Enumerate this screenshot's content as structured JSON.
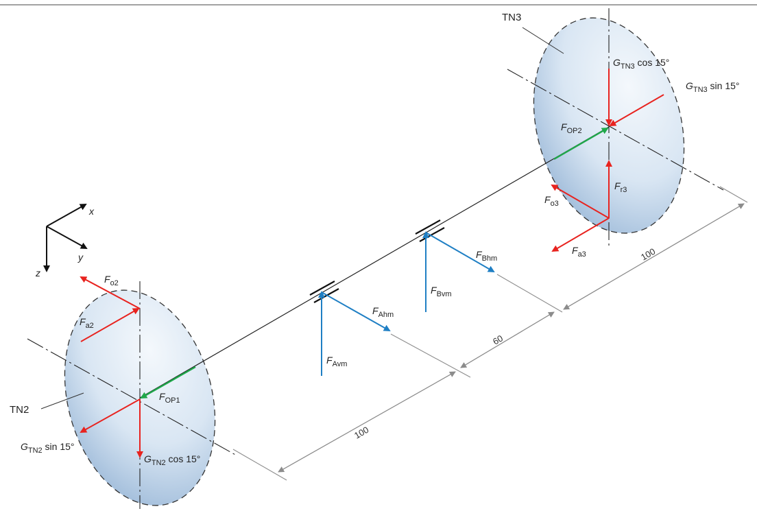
{
  "disks": {
    "left_label": "TN2",
    "right_label": "TN3"
  },
  "axes": {
    "x": "x",
    "y": "y",
    "z": "z"
  },
  "dimensions": {
    "d1": "100",
    "d2": "60",
    "d3": "100"
  },
  "forces": {
    "Fo2": {
      "main": "F",
      "sub": "o2"
    },
    "Fa2": {
      "main": "F",
      "sub": "a2"
    },
    "FOP1": {
      "main": "F",
      "sub": "OP1"
    },
    "GTN2_sin": {
      "main": "G",
      "sub": "TN2",
      "suffix": " sin 15°"
    },
    "GTN2_cos": {
      "main": "G",
      "sub": "TN2",
      "suffix": " cos 15°"
    },
    "FAhm": {
      "main": "F",
      "sub": "Ahm"
    },
    "FAvm": {
      "main": "F",
      "sub": "Avm"
    },
    "FBhm": {
      "main": "F",
      "sub": "Bhm"
    },
    "FBvm": {
      "main": "F",
      "sub": "Bvm"
    },
    "FOP2": {
      "main": "F",
      "sub": "OP2"
    },
    "GTN3_cos": {
      "main": "G",
      "sub": "TN3",
      "suffix": " cos 15°"
    },
    "GTN3_sin": {
      "main": "G",
      "sub": "TN3",
      "suffix": " sin 15°"
    },
    "Fr3": {
      "main": "F",
      "sub": "r3"
    },
    "Fo3": {
      "main": "F",
      "sub": "o3"
    },
    "Fa3": {
      "main": "F",
      "sub": "a3"
    }
  },
  "colors": {
    "red": "#e8231f",
    "blue": "#1f7fc4",
    "green": "#1fa84a",
    "disk_light": "#eef4fb",
    "disk_dark": "#a9c3e0",
    "dim_line": "#8c8c8c"
  }
}
